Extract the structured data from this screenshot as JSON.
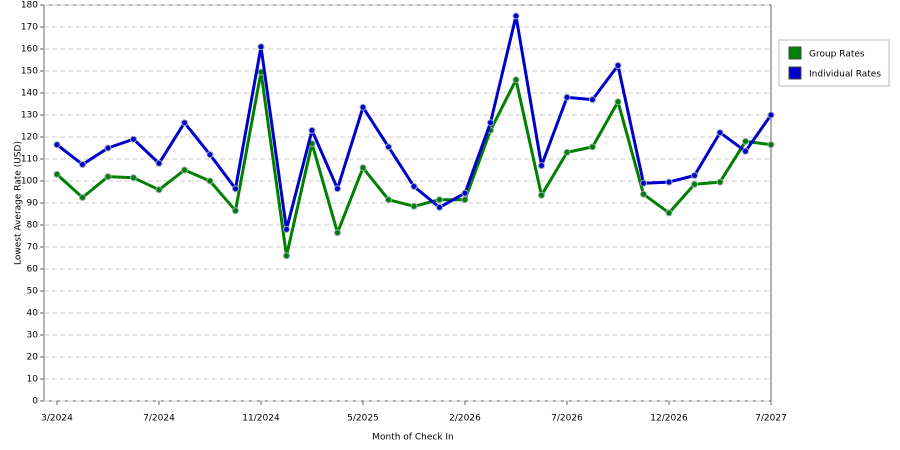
{
  "chart_data": {
    "type": "line",
    "x_label": "Month of Check In",
    "y_label": "Lowest Average Rate (USD)",
    "categories": [
      "3/2024",
      null,
      null,
      null,
      "7/2024",
      null,
      null,
      null,
      "11/2024",
      null,
      null,
      null,
      "5/2025",
      null,
      null,
      null,
      "2/2026",
      null,
      null,
      null,
      "7/2026",
      null,
      null,
      null,
      "12/2026",
      null,
      null,
      null,
      "7/2027"
    ],
    "series": [
      {
        "name": "Group Rates",
        "color": "#008000",
        "values": [
          103,
          92.5,
          102,
          101.5,
          96,
          105,
          100,
          86.5,
          149.5,
          66,
          117,
          76.5,
          106,
          91.5,
          88.5,
          91.5,
          91.5,
          123,
          146,
          93.5,
          113,
          115.5,
          136,
          94,
          85.5,
          98.5,
          99.5,
          118,
          116.5
        ]
      },
      {
        "name": "Individual Rates",
        "color": "#0000cc",
        "values": [
          116.5,
          107.5,
          115,
          119,
          108,
          126.5,
          112,
          96.5,
          161,
          78,
          123,
          96.5,
          133.5,
          115.5,
          97.5,
          88,
          94.5,
          126.5,
          175,
          107,
          138,
          137,
          152.5,
          99,
          99.5,
          102.5,
          122,
          113.5,
          130
        ]
      }
    ],
    "ylim": [
      0,
      180
    ],
    "yticks": [
      0,
      10,
      20,
      30,
      40,
      50,
      60,
      70,
      80,
      90,
      100,
      110,
      120,
      130,
      140,
      150,
      160,
      170,
      180
    ],
    "grid": true,
    "legend": "right"
  }
}
